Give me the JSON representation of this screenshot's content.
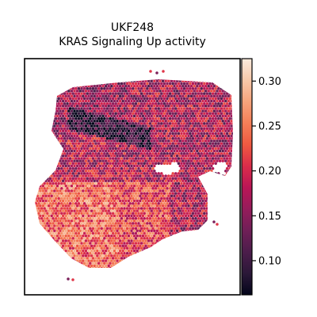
{
  "chart_data": {
    "type": "scatter",
    "title": "UKF248",
    "subtitle": "KRAS Signaling Up activity",
    "xlabel": "",
    "ylabel": "",
    "plot_style": "spatial hexagonal spot map, axes hidden",
    "colormap": "rocket",
    "colormap_stops": [
      "#03051a",
      "#2b1838",
      "#4c1d4b",
      "#701f57",
      "#961c5b",
      "#ba1656",
      "#db2d4a",
      "#ef5a41",
      "#f47f58",
      "#f6a47c",
      "#f7c9aa",
      "#faebdd"
    ],
    "colorbar": {
      "min": 0.062,
      "max": 0.325,
      "ticks": [
        0.1,
        0.15,
        0.2,
        0.25,
        0.3
      ],
      "tick_labels": [
        "0.10",
        "0.15",
        "0.20",
        "0.25",
        "0.30"
      ]
    },
    "regions": {
      "upper_left": 0.16,
      "dark_band": 0.09,
      "upper_right": 0.17,
      "lower_left": 0.24,
      "lower_center": 0.22,
      "lower_right": 0.17,
      "mid": 0.18
    }
  }
}
